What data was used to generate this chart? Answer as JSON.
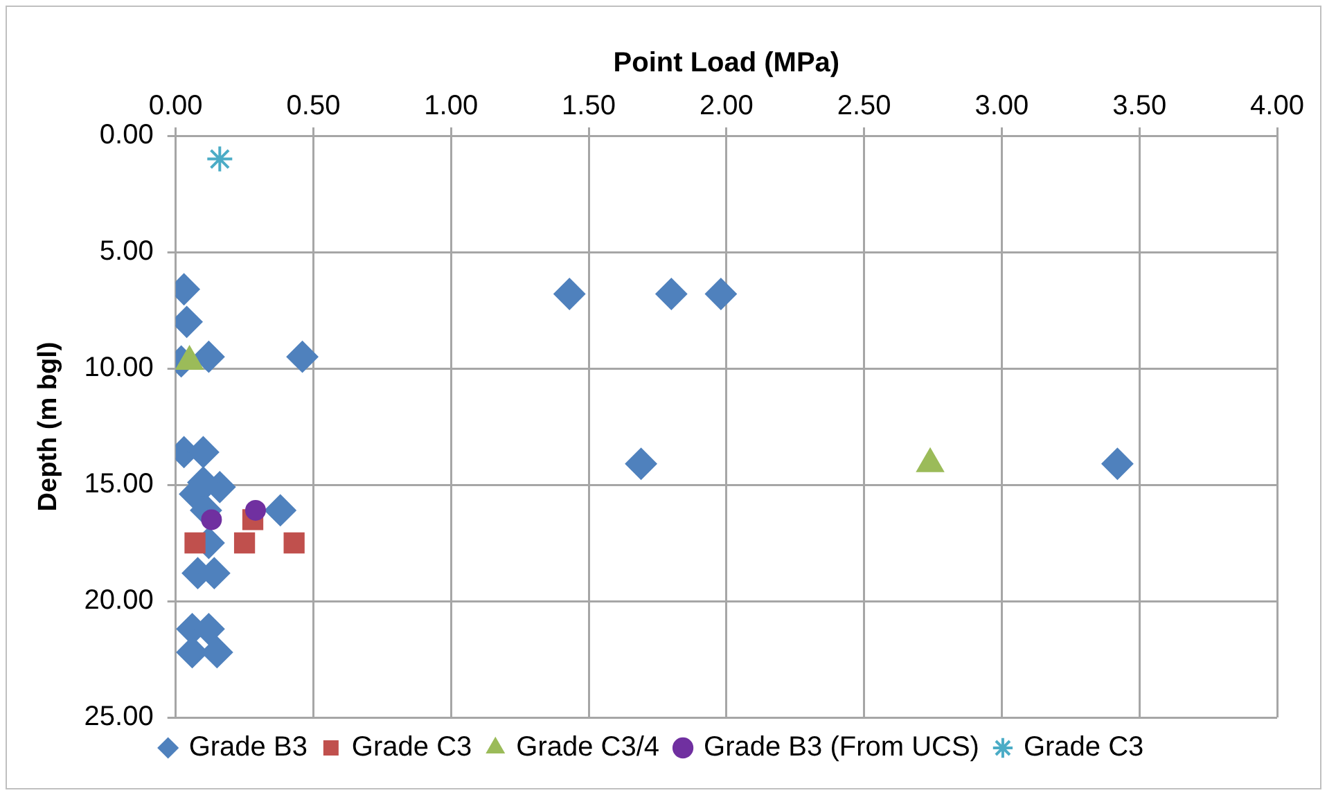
{
  "chart_data": {
    "type": "scatter",
    "xlabel": "Point Load (MPa)",
    "ylabel": "Depth (m bgl)",
    "xlim": [
      0,
      4
    ],
    "xticks": [
      {
        "value": 0,
        "label": "0.00"
      },
      {
        "value": 0.5,
        "label": "0.50"
      },
      {
        "value": 1,
        "label": "1.00"
      },
      {
        "value": 1.5,
        "label": "1.50"
      },
      {
        "value": 2,
        "label": "2.00"
      },
      {
        "value": 2.5,
        "label": "2.50"
      },
      {
        "value": 3,
        "label": "3.00"
      },
      {
        "value": 3.5,
        "label": "3.50"
      },
      {
        "value": 4,
        "label": "4.00"
      }
    ],
    "ylim": [
      25,
      0
    ],
    "yticks": [
      {
        "value": 0,
        "label": "0.00"
      },
      {
        "value": 5,
        "label": "5.00"
      },
      {
        "value": 10,
        "label": "10.00"
      },
      {
        "value": 15,
        "label": "15.00"
      },
      {
        "value": 20,
        "label": "20.00"
      },
      {
        "value": 25,
        "label": "25.00"
      }
    ],
    "grid": true,
    "legend": "bottom",
    "series": [
      {
        "name": "Grade B3",
        "color": "#4f81bd",
        "marker": "diamond",
        "x": [
          0.03,
          0.04,
          0.02,
          0.12,
          0.46,
          0.03,
          0.1,
          0.07,
          0.16,
          0.1,
          0.11,
          0.38,
          0.12,
          0.08,
          0.14,
          0.06,
          0.12,
          0.06,
          0.15,
          1.43,
          1.8,
          1.98,
          1.69,
          3.42
        ],
        "values": [
          6.6,
          8.0,
          9.7,
          9.5,
          9.5,
          13.6,
          13.6,
          15.4,
          15.1,
          14.9,
          16.1,
          16.1,
          17.5,
          18.8,
          18.8,
          21.2,
          21.2,
          22.2,
          22.2,
          6.8,
          6.8,
          6.8,
          14.1,
          14.1
        ]
      },
      {
        "name": "Grade C3",
        "color": "#c0504d",
        "marker": "square",
        "x": [
          0.07,
          0.25,
          0.43,
          0.28
        ],
        "values": [
          17.5,
          17.5,
          17.5,
          16.5
        ]
      },
      {
        "name": "Grade C3/4",
        "color": "#9bbb59",
        "marker": "triangle",
        "x": [
          0.05,
          2.74
        ],
        "values": [
          9.7,
          14.1
        ]
      },
      {
        "name": "Grade B3 (From UCS)",
        "color": "#7030a0",
        "marker": "circle",
        "x": [
          0.13,
          0.29
        ],
        "values": [
          16.5,
          16.1
        ]
      },
      {
        "name": "Grade C3",
        "color": "#4bacc6",
        "marker": "cross",
        "x": [
          0.16
        ],
        "values": [
          1.0
        ]
      }
    ]
  }
}
